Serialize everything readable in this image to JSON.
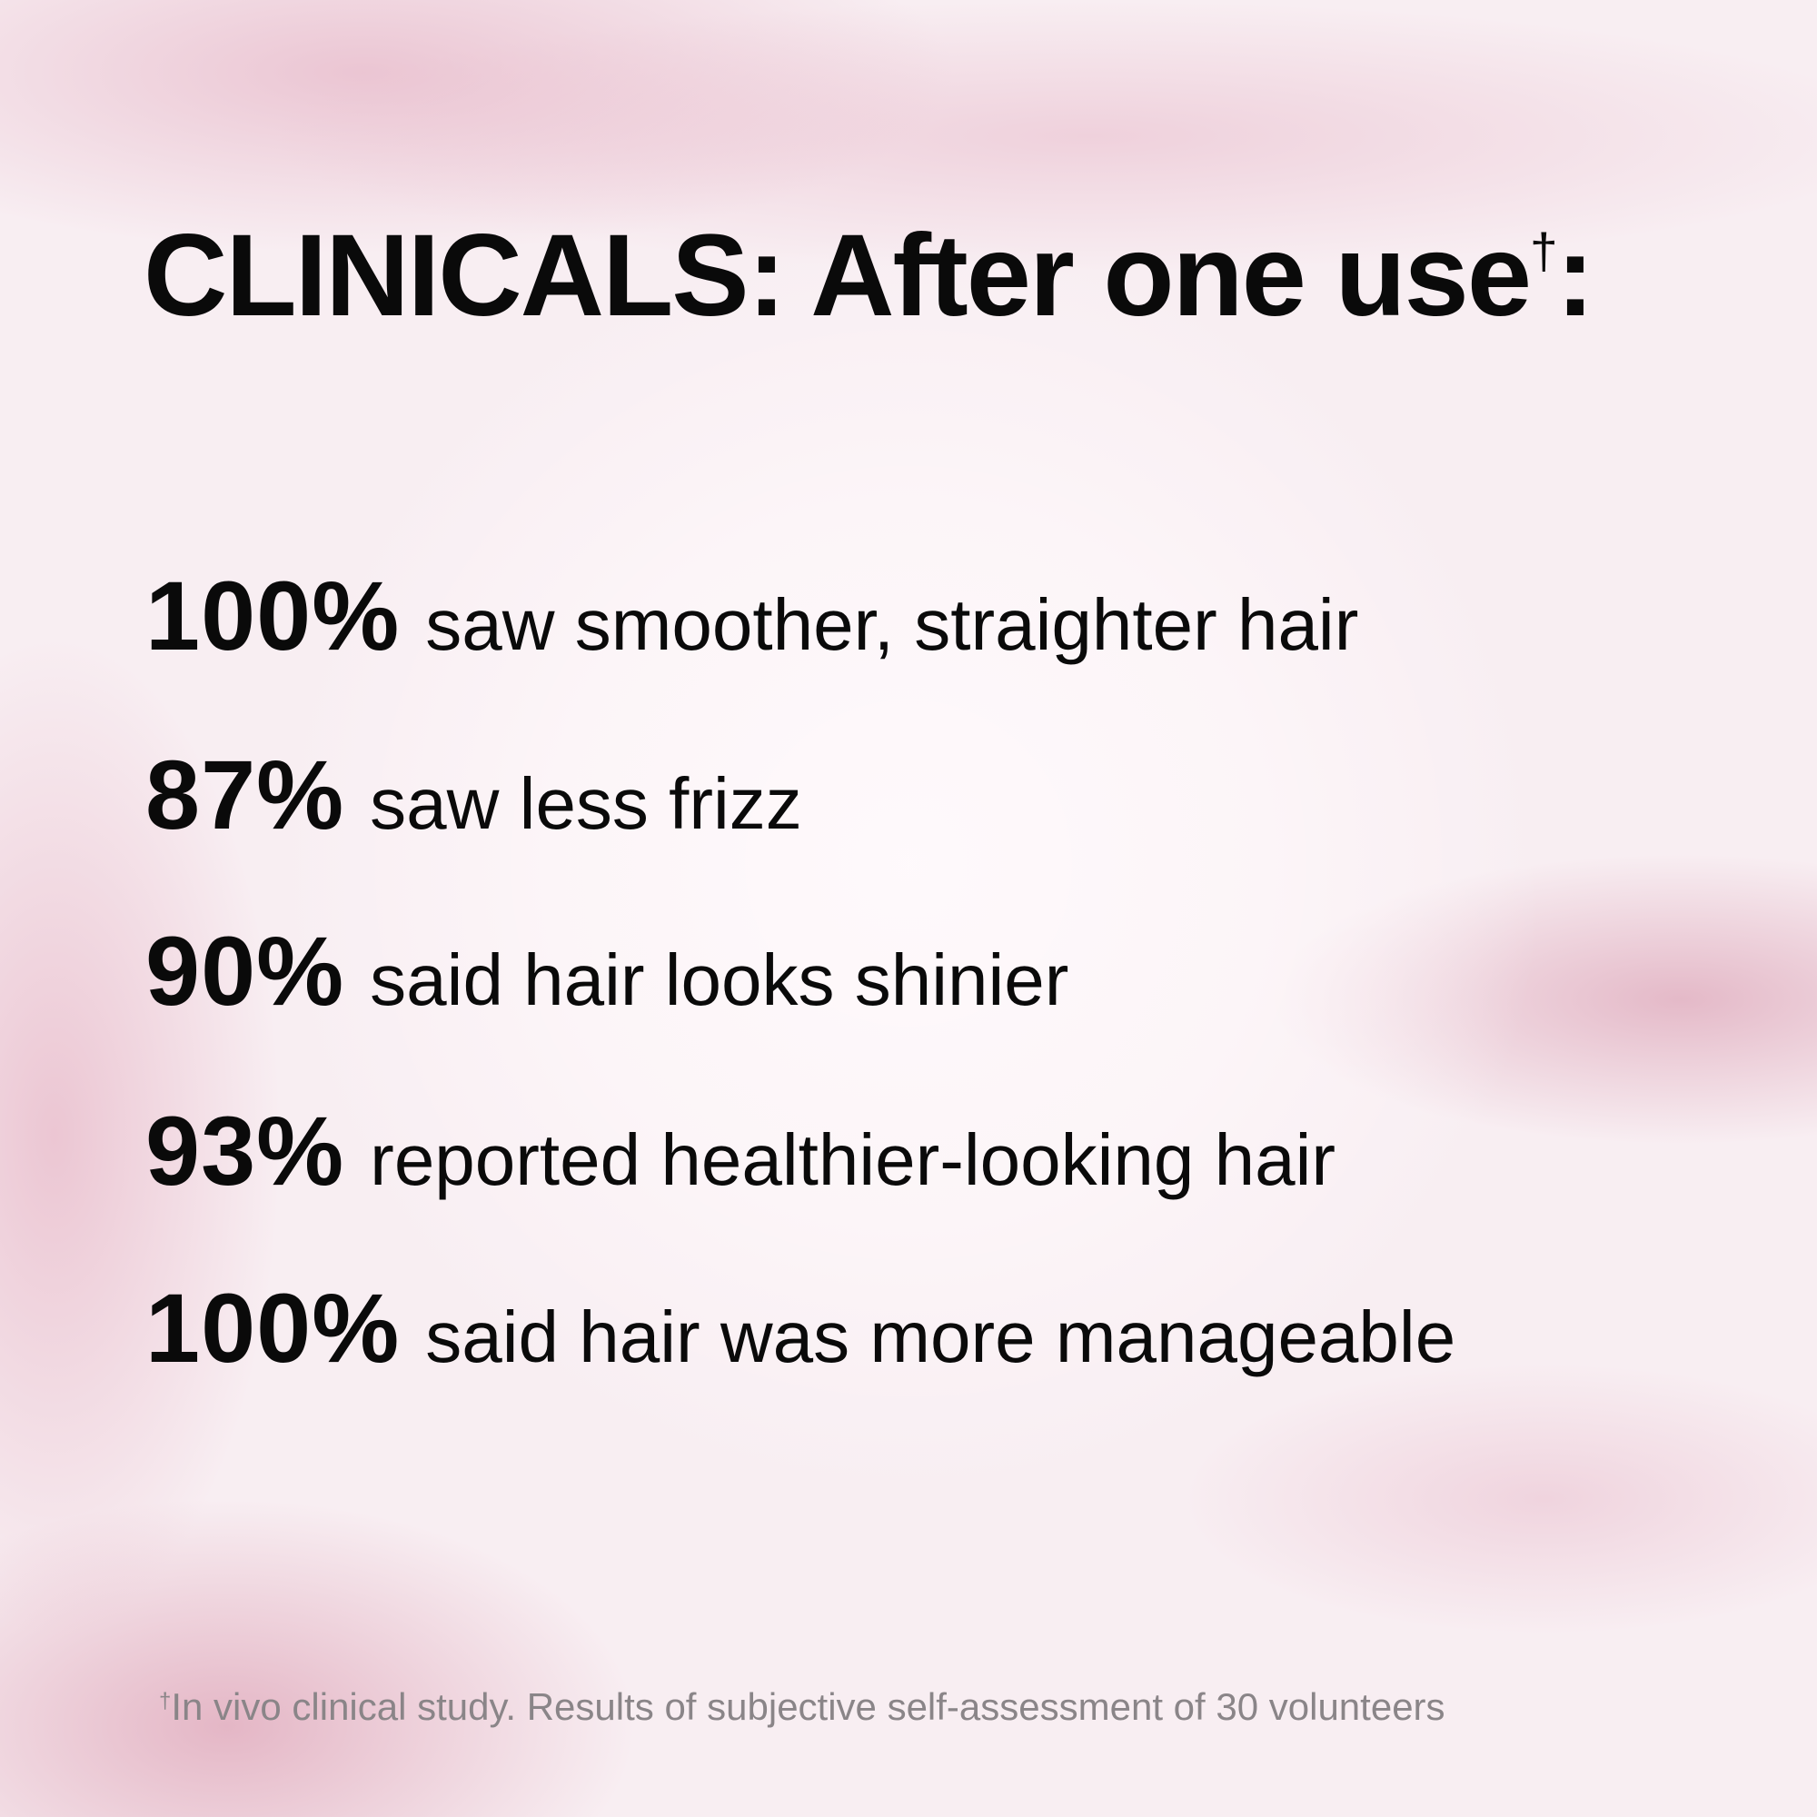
{
  "title": {
    "text": "CLINICALS: After one use",
    "dagger": "†",
    "colon": ":"
  },
  "stats": [
    {
      "value": "100%",
      "text": "saw smoother, straighter hair"
    },
    {
      "value": "87%",
      "text": "saw less frizz"
    },
    {
      "value": "90%",
      "text": "said hair looks shinier"
    },
    {
      "value": "93%",
      "text": "reported healthier-looking hair"
    },
    {
      "value": "100%",
      "text": "said hair was more manageable"
    }
  ],
  "footnote": {
    "dagger": "†",
    "text": "In vivo clinical study. Results of subjective self-assessment of 30 volunteers"
  },
  "colors": {
    "text": "#0a0a0a",
    "footnote": "#8a8588",
    "background": "#f8eef2",
    "accent_pink": "#e2aabe"
  }
}
